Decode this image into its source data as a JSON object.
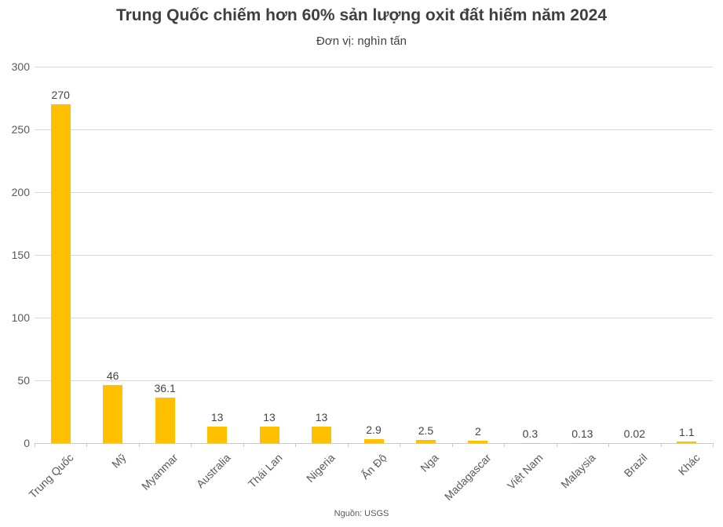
{
  "header": {
    "title": "Trung Quốc chiếm hơn 60% sản lượng oxit đất hiếm năm 2024",
    "subtitle": "Đơn vị: nghìn tấn"
  },
  "footer": {
    "source": "Nguồn: USGS"
  },
  "chart_data": {
    "type": "bar",
    "title": "Trung Quốc chiếm hơn 60% sản lượng oxit đất hiếm năm 2024",
    "subtitle": "Đơn vị: nghìn tấn",
    "unit": "nghìn tấn",
    "categories": [
      "Trung Quốc",
      "Mỹ",
      "Myanmar",
      "Australia",
      "Thái Lan",
      "Nigeria",
      "Ấn Độ",
      "Nga",
      "Madagascar",
      "Việt Nam",
      "Malaysia",
      "Brazil",
      "Khác"
    ],
    "values": [
      270,
      46,
      36.1,
      13,
      13,
      13,
      2.9,
      2.5,
      2,
      0.3,
      0.13,
      0.02,
      1.1
    ],
    "value_labels": [
      "270",
      "46",
      "36.1",
      "13",
      "13",
      "13",
      "2.9",
      "2.5",
      "2",
      "0.3",
      "0.13",
      "0.02",
      "1.1"
    ],
    "xlabel": "",
    "ylabel": "",
    "ylim": [
      0,
      300
    ],
    "yticks": [
      0,
      50,
      100,
      150,
      200,
      250,
      300
    ],
    "grid": true,
    "legend": "none",
    "bar_color": "#FFC000",
    "gridline_color": "#d9d9d9",
    "axis_color": "#c9c9c9",
    "label_color": "#595959",
    "source": "Nguồn: USGS"
  }
}
